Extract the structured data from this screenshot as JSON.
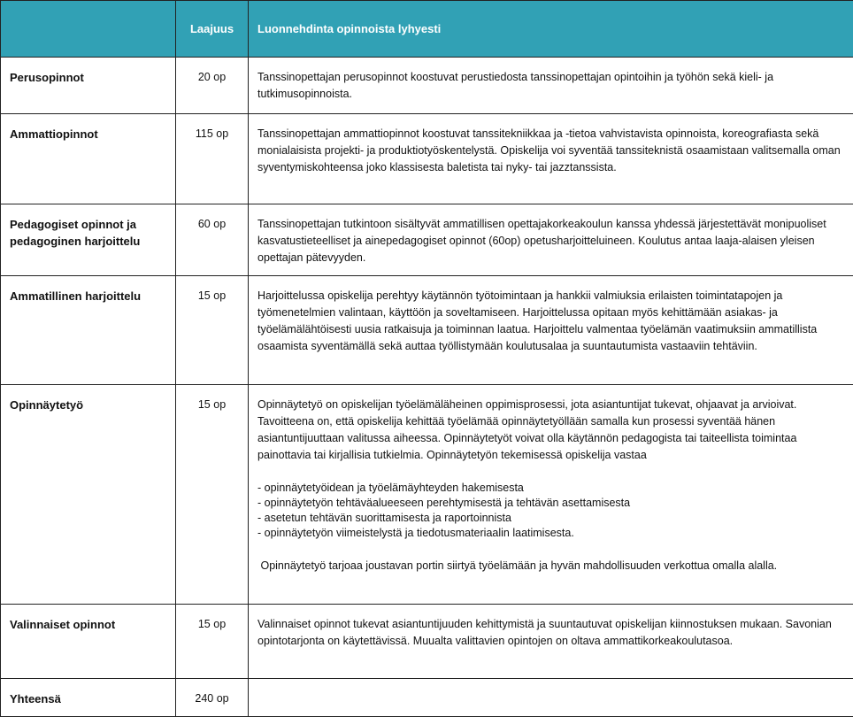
{
  "header": {
    "col_name": "",
    "col_scope": "Laajuus",
    "col_desc": "Luonnehdinta opinnoista lyhyesti",
    "color": "#31a1b5"
  },
  "rows": [
    {
      "name": "Perusopinnot",
      "scope": "20 op",
      "desc": "Tanssinopettajan perusopinnot koostuvat perustiedosta tanssinopettajan opintoihin ja työhön sekä kieli- ja tutkimusopinnoista."
    },
    {
      "name": "Ammattiopinnot",
      "scope": "115 op",
      "desc": "Tanssinopettajan ammattiopinnot koostuvat tanssitekniikkaa ja -tietoa vahvistavista opinnoista, koreografiasta sekä monialaisista projekti- ja produktiotyöskentelystä. Opiskelija voi syventää tanssiteknistä osaamistaan valitsemalla oman syventymiskohteensa joko klassisesta baletista tai nyky- tai jazztanssista."
    },
    {
      "name": "Pedagogiset opinnot ja pedagoginen harjoittelu",
      "scope": "60 op",
      "desc": "Tanssinopettajan tutkintoon sisältyvät ammatillisen opettajakorkeakoulun kanssa yhdessä järjestettävät monipuoliset kasvatustieteelliset ja ainepedagogiset opinnot (60op) opetusharjoitteluineen. Koulutus antaa laaja-alaisen yleisen opettajan pätevyyden."
    },
    {
      "name": "Ammatillinen harjoittelu",
      "scope": "15 op",
      "desc": "Harjoittelussa opiskelija perehtyy käytännön työtoimintaan ja hankkii valmiuksia erilaisten toimintatapojen ja työmenetelmien valintaan, käyttöön ja soveltamiseen.  Harjoittelussa opitaan myös kehittämään asiakas- ja työelämälähtöisesti uusia ratkaisuja ja toiminnan laatua.  Harjoittelu valmentaa työelämän vaatimuksiin ammatillista osaamista syventämällä sekä auttaa työllistymään koulutusalaa ja suuntautumista vastaaviin tehtäviin."
    },
    {
      "name": "Opinnäytetyö",
      "scope": "15 op",
      "desc": "Opinnäytetyö on opiskelijan työelämäläheinen oppimisprosessi, jota asiantuntijat tukevat, ohjaavat ja arvioivat. Tavoitteena on, että opiskelija kehittää työelämää opinnäytetyöllään samalla kun prosessi syventää hänen asiantuntijuuttaan valitussa aiheessa.  Opinnäytetyöt voivat olla käytännön pedagogista tai taiteellista toimintaa painottavia tai kirjallisia tutkielmia. Opinnäytetyön tekemisessä opiskelija vastaa",
      "list": [
        "- opinnäytetyöidean ja työelämäyhteyden hakemisesta",
        "- opinnäytetyön tehtäväalueeseen  perehtymisestä ja tehtävän asettamisesta",
        "- asetetun tehtävän suorittamisesta ja raportoinnista",
        "- opinnäytetyön viimeistelystä ja tiedotusmateriaalin laatimisesta."
      ],
      "closing": " Opinnäytetyö tarjoaa joustavan portin siirtyä työelämään ja hyvän mahdollisuuden verkottua omalla alalla."
    },
    {
      "name": "Valinnaiset opinnot",
      "scope": "15 op",
      "desc": "Valinnaiset opinnot tukevat asiantuntijuuden kehittymistä ja suuntautuvat opiskelijan kiinnostuksen mukaan. Savonian opintotarjonta on käytettävissä.  Muualta valittavien opintojen on oltava ammattikorkeakoulutasoa."
    },
    {
      "name": "Yhteensä",
      "scope": "240 op",
      "desc": ""
    }
  ]
}
